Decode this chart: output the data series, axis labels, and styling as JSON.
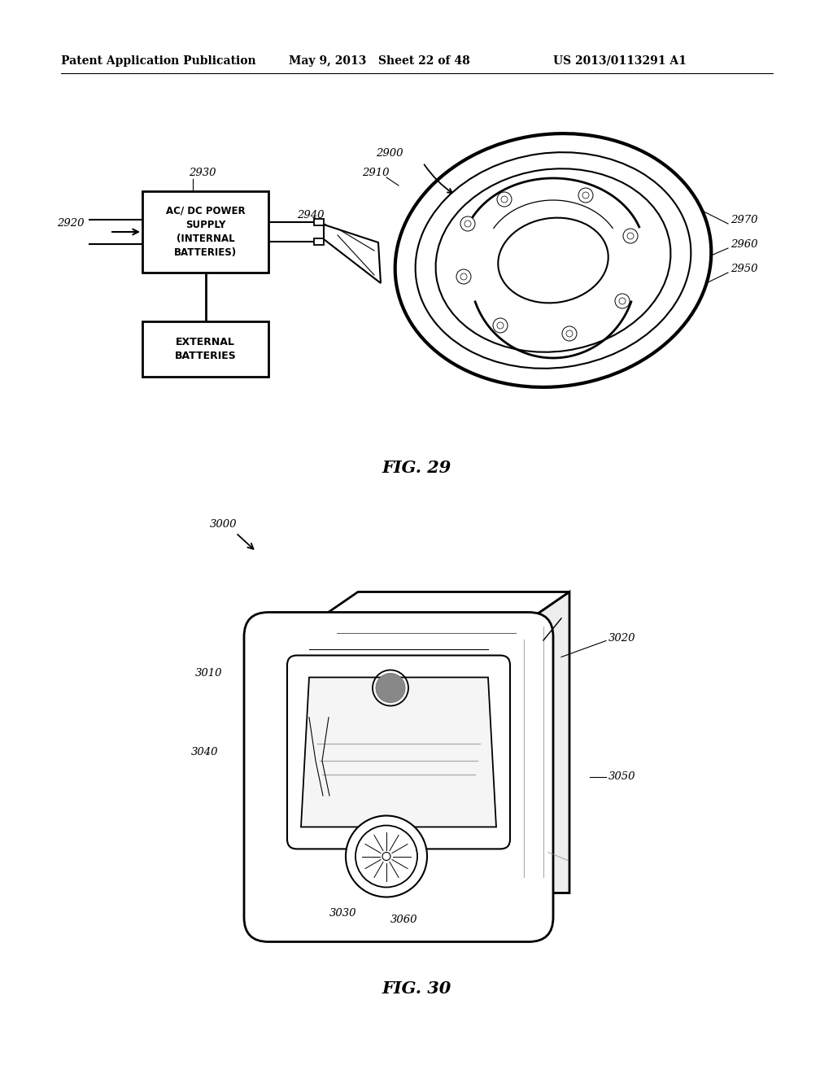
{
  "bg_color": "#ffffff",
  "header_left": "Patent Application Publication",
  "header_mid": "May 9, 2013   Sheet 22 of 48",
  "header_right": "US 2013/0113291 A1",
  "fig29_caption": "FIG. 29",
  "fig30_caption": "FIG. 30"
}
